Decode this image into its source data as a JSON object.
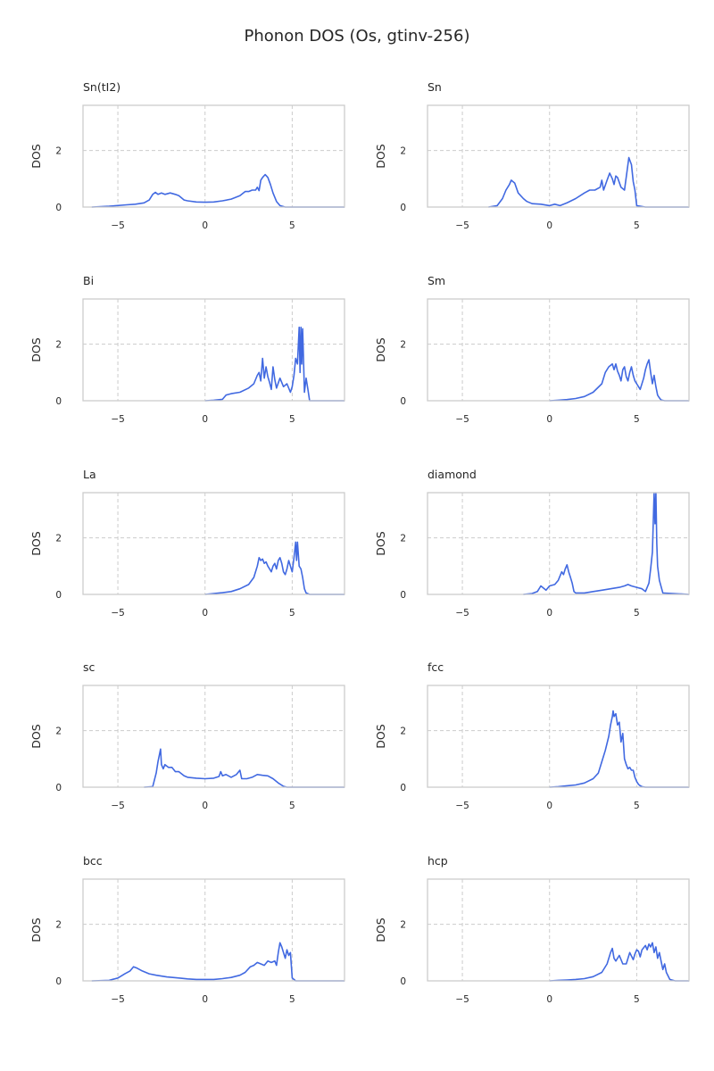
{
  "figure_title": "Phonon DOS (Os, gtinv-256)",
  "colors": {
    "line": "#4169e1",
    "grid": "#cccccc",
    "frame": "#cccccc",
    "text": "#262626"
  },
  "chart_data": [
    {
      "type": "line",
      "title": "Sn(tI2)",
      "xlabel": "",
      "ylabel": "DOS",
      "xlim": [
        -7,
        8
      ],
      "ylim": [
        0,
        3.6
      ],
      "xticks": [
        -5,
        0,
        5
      ],
      "yticks": [
        0,
        2
      ],
      "grid": true,
      "x": [
        -6.5,
        -5.5,
        -4.5,
        -4.0,
        -3.5,
        -3.2,
        -3.0,
        -2.85,
        -2.7,
        -2.5,
        -2.3,
        -2.0,
        -1.7,
        -1.5,
        -1.2,
        -1.0,
        -0.5,
        0,
        0.5,
        1.0,
        1.5,
        2.0,
        2.3,
        2.5,
        2.7,
        2.9,
        3.0,
        3.1,
        3.2,
        3.3,
        3.45,
        3.6,
        3.75,
        3.9,
        4.1,
        4.3,
        4.6,
        5.5,
        8.0
      ],
      "y": [
        0,
        0.03,
        0.08,
        0.1,
        0.15,
        0.25,
        0.45,
        0.52,
        0.45,
        0.5,
        0.45,
        0.5,
        0.45,
        0.4,
        0.25,
        0.22,
        0.18,
        0.17,
        0.18,
        0.22,
        0.28,
        0.4,
        0.55,
        0.55,
        0.6,
        0.6,
        0.7,
        0.58,
        0.95,
        1.05,
        1.15,
        1.05,
        0.8,
        0.5,
        0.2,
        0.05,
        0,
        0,
        0
      ]
    },
    {
      "type": "line",
      "title": "Sn",
      "xlabel": "",
      "ylabel": "DOS",
      "xlim": [
        -7,
        8
      ],
      "ylim": [
        0,
        3.6
      ],
      "xticks": [
        -5,
        0,
        5
      ],
      "yticks": [
        0,
        2
      ],
      "grid": true,
      "x": [
        -3.5,
        -3.0,
        -2.7,
        -2.5,
        -2.3,
        -2.2,
        -2.0,
        -1.8,
        -1.5,
        -1.3,
        -1.0,
        -0.5,
        0,
        0.3,
        0.6,
        1.0,
        1.5,
        2.0,
        2.3,
        2.6,
        2.9,
        3.0,
        3.1,
        3.3,
        3.45,
        3.6,
        3.7,
        3.8,
        3.9,
        4.1,
        4.3,
        4.45,
        4.55,
        4.7,
        4.8,
        4.9,
        5.0,
        5.5,
        8.0
      ],
      "y": [
        0,
        0.05,
        0.3,
        0.6,
        0.8,
        0.95,
        0.85,
        0.5,
        0.3,
        0.2,
        0.12,
        0.1,
        0.05,
        0.1,
        0.05,
        0.15,
        0.3,
        0.5,
        0.6,
        0.6,
        0.7,
        0.95,
        0.6,
        0.95,
        1.2,
        1.0,
        0.8,
        1.1,
        1.05,
        0.7,
        0.6,
        1.3,
        1.75,
        1.5,
        0.9,
        0.6,
        0.05,
        0,
        0
      ]
    },
    {
      "type": "line",
      "title": "Bi",
      "xlabel": "",
      "ylabel": "DOS",
      "xlim": [
        -7,
        8
      ],
      "ylim": [
        0,
        3.6
      ],
      "xticks": [
        -5,
        0,
        5
      ],
      "yticks": [
        0,
        2
      ],
      "grid": true,
      "x": [
        0,
        0.5,
        1.0,
        1.2,
        1.5,
        2.0,
        2.5,
        2.8,
        3.0,
        3.1,
        3.2,
        3.3,
        3.4,
        3.5,
        3.6,
        3.7,
        3.8,
        3.9,
        4.0,
        4.1,
        4.3,
        4.5,
        4.7,
        4.9,
        5.0,
        5.1,
        5.2,
        5.3,
        5.4,
        5.45,
        5.5,
        5.55,
        5.6,
        5.7,
        5.8,
        5.9,
        6.0,
        6.2,
        8.0
      ],
      "y": [
        0,
        0.02,
        0.05,
        0.2,
        0.25,
        0.3,
        0.45,
        0.6,
        0.9,
        1.0,
        0.7,
        1.5,
        0.8,
        1.2,
        0.85,
        0.65,
        0.4,
        1.2,
        0.75,
        0.45,
        0.8,
        0.5,
        0.6,
        0.3,
        0.5,
        0.9,
        1.5,
        1.3,
        2.6,
        1.0,
        2.6,
        1.3,
        2.55,
        0.3,
        0.8,
        0.4,
        0,
        0,
        0
      ]
    },
    {
      "type": "line",
      "title": "Sm",
      "xlabel": "",
      "ylabel": "DOS",
      "xlim": [
        -7,
        8
      ],
      "ylim": [
        0,
        3.6
      ],
      "xticks": [
        -5,
        0,
        5
      ],
      "yticks": [
        0,
        2
      ],
      "grid": true,
      "x": [
        0,
        0.5,
        1.0,
        1.5,
        2.0,
        2.5,
        3.0,
        3.2,
        3.4,
        3.6,
        3.7,
        3.8,
        3.9,
        4.0,
        4.1,
        4.2,
        4.3,
        4.4,
        4.5,
        4.6,
        4.7,
        4.8,
        4.9,
        5.0,
        5.2,
        5.4,
        5.5,
        5.6,
        5.7,
        5.8,
        5.9,
        6.0,
        6.1,
        6.2,
        6.3,
        6.4,
        6.6,
        7.0,
        8.0
      ],
      "y": [
        0,
        0.02,
        0.04,
        0.08,
        0.15,
        0.3,
        0.6,
        1.0,
        1.2,
        1.3,
        1.1,
        1.3,
        1.05,
        0.9,
        0.7,
        1.1,
        1.2,
        0.85,
        0.7,
        1.0,
        1.2,
        0.9,
        0.7,
        0.6,
        0.4,
        0.8,
        1.1,
        1.3,
        1.45,
        1.0,
        0.6,
        0.9,
        0.5,
        0.2,
        0.1,
        0.03,
        0,
        0,
        0
      ]
    },
    {
      "type": "line",
      "title": "La",
      "xlabel": "",
      "ylabel": "DOS",
      "xlim": [
        -7,
        8
      ],
      "ylim": [
        0,
        3.6
      ],
      "xticks": [
        -5,
        0,
        5
      ],
      "yticks": [
        0,
        2
      ],
      "grid": true,
      "x": [
        0,
        0.5,
        1.0,
        1.5,
        2.0,
        2.5,
        2.8,
        3.0,
        3.1,
        3.2,
        3.3,
        3.4,
        3.5,
        3.6,
        3.8,
        3.9,
        4.0,
        4.1,
        4.2,
        4.3,
        4.4,
        4.5,
        4.6,
        4.7,
        4.8,
        4.9,
        5.0,
        5.1,
        5.2,
        5.25,
        5.3,
        5.4,
        5.5,
        5.6,
        5.7,
        5.8,
        6.0,
        6.5,
        8.0
      ],
      "y": [
        0,
        0.03,
        0.06,
        0.1,
        0.2,
        0.35,
        0.6,
        1.0,
        1.3,
        1.2,
        1.25,
        1.1,
        1.15,
        1.0,
        0.8,
        1.0,
        1.1,
        0.9,
        1.2,
        1.3,
        1.1,
        0.8,
        0.7,
        0.9,
        1.2,
        1.0,
        0.8,
        1.3,
        1.85,
        1.2,
        1.85,
        1.0,
        0.9,
        0.6,
        0.2,
        0.05,
        0,
        0,
        0
      ]
    },
    {
      "type": "line",
      "title": "diamond",
      "xlabel": "",
      "ylabel": "DOS",
      "xlim": [
        -7,
        8
      ],
      "ylim": [
        0,
        3.6
      ],
      "xticks": [
        -5,
        0,
        5
      ],
      "yticks": [
        0,
        2
      ],
      "grid": true,
      "x": [
        -1.5,
        -1.0,
        -0.7,
        -0.5,
        -0.2,
        0,
        0.3,
        0.5,
        0.7,
        0.8,
        0.9,
        1.0,
        1.1,
        1.2,
        1.3,
        1.4,
        1.5,
        2.0,
        2.5,
        3.0,
        3.5,
        4.0,
        4.3,
        4.5,
        4.7,
        5.0,
        5.3,
        5.5,
        5.7,
        5.8,
        5.9,
        6.0,
        6.05,
        6.1,
        6.15,
        6.2,
        6.3,
        6.5,
        8.0
      ],
      "y": [
        0,
        0.03,
        0.1,
        0.3,
        0.15,
        0.3,
        0.35,
        0.5,
        0.8,
        0.7,
        0.9,
        1.05,
        0.8,
        0.6,
        0.4,
        0.1,
        0.05,
        0.05,
        0.1,
        0.15,
        0.2,
        0.25,
        0.3,
        0.35,
        0.3,
        0.25,
        0.2,
        0.1,
        0.4,
        0.9,
        1.5,
        3.6,
        2.5,
        3.6,
        1.8,
        1.0,
        0.5,
        0.05,
        0
      ]
    },
    {
      "type": "line",
      "title": "sc",
      "xlabel": "",
      "ylabel": "DOS",
      "xlim": [
        -7,
        8
      ],
      "ylim": [
        0,
        3.6
      ],
      "xticks": [
        -5,
        0,
        5
      ],
      "yticks": [
        0,
        2
      ],
      "grid": true,
      "x": [
        -3.5,
        -3.0,
        -2.8,
        -2.7,
        -2.55,
        -2.5,
        -2.4,
        -2.3,
        -2.1,
        -1.9,
        -1.7,
        -1.5,
        -1.2,
        -1.0,
        -0.5,
        0,
        0.5,
        0.8,
        0.9,
        1.0,
        1.2,
        1.5,
        1.8,
        2.0,
        2.1,
        2.2,
        2.4,
        2.7,
        3.0,
        3.3,
        3.6,
        3.9,
        4.2,
        4.5,
        4.7,
        5.0,
        6.0,
        7.0,
        8.0
      ],
      "y": [
        0,
        0.02,
        0.5,
        0.9,
        1.35,
        0.8,
        0.65,
        0.8,
        0.7,
        0.7,
        0.55,
        0.55,
        0.4,
        0.35,
        0.32,
        0.3,
        0.32,
        0.38,
        0.55,
        0.4,
        0.45,
        0.35,
        0.45,
        0.6,
        0.3,
        0.3,
        0.3,
        0.35,
        0.45,
        0.42,
        0.4,
        0.3,
        0.15,
        0.03,
        0,
        0,
        0,
        0,
        0
      ]
    },
    {
      "type": "line",
      "title": "fcc",
      "xlabel": "",
      "ylabel": "DOS",
      "xlim": [
        -7,
        8
      ],
      "ylim": [
        0,
        3.6
      ],
      "xticks": [
        -5,
        0,
        5
      ],
      "yticks": [
        0,
        2
      ],
      "grid": true,
      "x": [
        0,
        0.5,
        1.0,
        1.5,
        2.0,
        2.5,
        2.8,
        3.0,
        3.2,
        3.4,
        3.5,
        3.6,
        3.65,
        3.7,
        3.8,
        3.9,
        4.0,
        4.1,
        4.2,
        4.3,
        4.4,
        4.5,
        4.6,
        4.7,
        4.8,
        4.9,
        5.0,
        5.1,
        5.2,
        5.3,
        5.5,
        6.0,
        6.5,
        7.0,
        7.5,
        8.0
      ],
      "y": [
        0,
        0.02,
        0.05,
        0.08,
        0.15,
        0.3,
        0.5,
        0.9,
        1.3,
        1.8,
        2.2,
        2.5,
        2.7,
        2.5,
        2.6,
        2.2,
        2.3,
        1.6,
        1.9,
        1.0,
        0.8,
        0.65,
        0.7,
        0.6,
        0.6,
        0.35,
        0.2,
        0.1,
        0.05,
        0.02,
        0,
        0,
        0,
        0,
        0,
        0
      ]
    },
    {
      "type": "line",
      "title": "bcc",
      "xlabel": "",
      "ylabel": "DOS",
      "xlim": [
        -7,
        8
      ],
      "ylim": [
        0,
        3.6
      ],
      "xticks": [
        -5,
        0,
        5
      ],
      "yticks": [
        0,
        2
      ],
      "grid": true,
      "x": [
        -6.5,
        -5.5,
        -5.0,
        -4.6,
        -4.3,
        -4.1,
        -3.9,
        -3.6,
        -3.2,
        -2.8,
        -2.2,
        -1.5,
        -1.0,
        -0.5,
        0,
        0.5,
        1.0,
        1.5,
        2.0,
        2.3,
        2.6,
        2.8,
        3.0,
        3.2,
        3.4,
        3.6,
        3.8,
        4.0,
        4.1,
        4.2,
        4.3,
        4.4,
        4.6,
        4.7,
        4.8,
        4.9,
        5.0,
        5.2,
        8.0
      ],
      "y": [
        0,
        0.02,
        0.1,
        0.25,
        0.35,
        0.5,
        0.45,
        0.35,
        0.25,
        0.2,
        0.14,
        0.1,
        0.07,
        0.05,
        0.05,
        0.05,
        0.08,
        0.12,
        0.2,
        0.3,
        0.5,
        0.55,
        0.65,
        0.6,
        0.55,
        0.7,
        0.65,
        0.7,
        0.55,
        1.0,
        1.35,
        1.2,
        0.8,
        1.1,
        0.9,
        1.0,
        0.1,
        0,
        0
      ]
    },
    {
      "type": "line",
      "title": "hcp",
      "xlabel": "",
      "ylabel": "DOS",
      "xlim": [
        -7,
        8
      ],
      "ylim": [
        0,
        3.6
      ],
      "xticks": [
        -5,
        0,
        5
      ],
      "yticks": [
        0,
        2
      ],
      "grid": true,
      "x": [
        0,
        0.5,
        1.0,
        1.5,
        2.0,
        2.5,
        3.0,
        3.3,
        3.5,
        3.6,
        3.7,
        3.8,
        4.0,
        4.2,
        4.4,
        4.6,
        4.8,
        4.9,
        5.0,
        5.1,
        5.2,
        5.3,
        5.5,
        5.6,
        5.7,
        5.8,
        5.9,
        6.0,
        6.1,
        6.2,
        6.3,
        6.4,
        6.5,
        6.6,
        6.7,
        6.9,
        7.2,
        7.5,
        8.0
      ],
      "y": [
        0,
        0.02,
        0.03,
        0.05,
        0.08,
        0.15,
        0.3,
        0.6,
        1.0,
        1.15,
        0.8,
        0.7,
        0.9,
        0.6,
        0.6,
        1.0,
        0.75,
        0.95,
        1.1,
        1.05,
        0.85,
        1.1,
        1.25,
        1.1,
        1.3,
        1.2,
        1.35,
        1.0,
        1.2,
        0.8,
        1.0,
        0.7,
        0.4,
        0.6,
        0.3,
        0.05,
        0,
        0,
        0
      ]
    }
  ]
}
